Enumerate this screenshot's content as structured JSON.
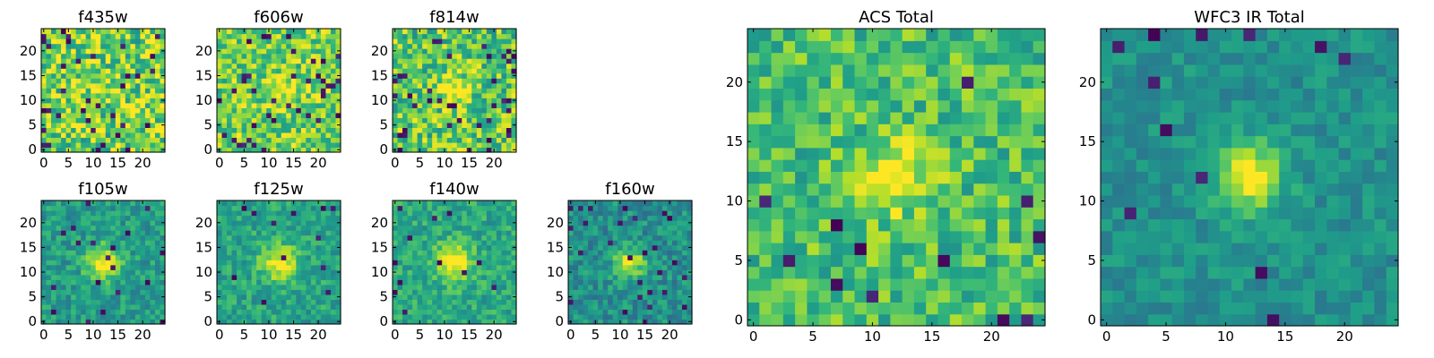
{
  "chart_data": {
    "type": "heatmap",
    "colormap": "viridis",
    "image_size": 25,
    "panels": [
      {
        "id": "f435w",
        "title": "f435w",
        "xticks": [
          0,
          5,
          10,
          15,
          20
        ],
        "yticks": [
          0,
          5,
          10,
          15,
          20
        ],
        "seed": 11,
        "noise": 0.55,
        "peak": 0.05,
        "sigma": 2.0,
        "base": 0.78,
        "dark_rate": 0.05
      },
      {
        "id": "f606w",
        "title": "f606w",
        "xticks": [
          0,
          5,
          10,
          15,
          20
        ],
        "yticks": [
          0,
          5,
          10,
          15,
          20
        ],
        "seed": 23,
        "noise": 0.45,
        "peak": 0.22,
        "sigma": 2.0,
        "base": 0.78,
        "dark_rate": 0.05
      },
      {
        "id": "f814w",
        "title": "f814w",
        "xticks": [
          0,
          5,
          10,
          15,
          20
        ],
        "yticks": [
          0,
          5,
          10,
          15,
          20
        ],
        "seed": 37,
        "noise": 0.5,
        "peak": 0.3,
        "sigma": 2.0,
        "base": 0.74,
        "dark_rate": 0.06
      },
      {
        "id": "f105w",
        "title": "f105w",
        "xticks": [
          0,
          5,
          10,
          15,
          20
        ],
        "yticks": [
          0,
          5,
          10,
          15,
          20
        ],
        "seed": 41,
        "noise": 0.28,
        "peak": 0.45,
        "sigma": 2.4,
        "base": 0.55,
        "dark_rate": 0.03
      },
      {
        "id": "f125w",
        "title": "f125w",
        "xticks": [
          0,
          5,
          10,
          15,
          20
        ],
        "yticks": [
          0,
          5,
          10,
          15,
          20
        ],
        "seed": 53,
        "noise": 0.28,
        "peak": 0.42,
        "sigma": 2.6,
        "base": 0.58,
        "dark_rate": 0.02
      },
      {
        "id": "f140w",
        "title": "f140w",
        "xticks": [
          0,
          5,
          10,
          15,
          20
        ],
        "yticks": [
          0,
          5,
          10,
          15,
          20
        ],
        "seed": 61,
        "noise": 0.28,
        "peak": 0.45,
        "sigma": 2.6,
        "base": 0.6,
        "dark_rate": 0.02
      },
      {
        "id": "f160w",
        "title": "f160w",
        "xticks": [
          0,
          5,
          10,
          15,
          20
        ],
        "yticks": [
          0,
          5,
          10,
          15,
          20
        ],
        "seed": 71,
        "noise": 0.3,
        "peak": 0.45,
        "sigma": 2.2,
        "base": 0.5,
        "dark_rate": 0.04
      },
      {
        "id": "acs_total",
        "title": "ACS Total",
        "xticks": [
          0,
          5,
          10,
          15,
          20
        ],
        "yticks": [
          0,
          5,
          10,
          15,
          20
        ],
        "seed": 83,
        "noise": 0.38,
        "peak": 0.35,
        "sigma": 2.0,
        "base": 0.7,
        "dark_rate": 0.02
      },
      {
        "id": "wfc3_ir_total",
        "title": "WFC3 IR Total",
        "xticks": [
          0,
          5,
          10,
          15,
          20
        ],
        "yticks": [
          0,
          5,
          10,
          15,
          20
        ],
        "seed": 97,
        "noise": 0.2,
        "peak": 0.5,
        "sigma": 2.0,
        "base": 0.5,
        "dark_rate": 0.015
      }
    ]
  }
}
